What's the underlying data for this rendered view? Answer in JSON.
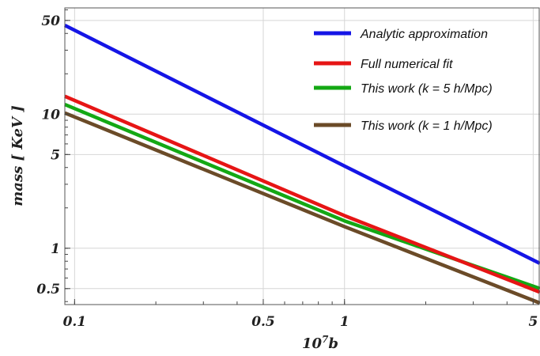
{
  "chart_data": {
    "type": "line",
    "xlabel": "10^7 b",
    "xlabel_base": "10",
    "xlabel_exponent": "7",
    "xlabel_variable": "b",
    "ylabel": "mass [ KeV ]",
    "xscale": "log",
    "yscale": "log",
    "xlim": [
      0.092,
      5.3
    ],
    "ylim": [
      0.38,
      62
    ],
    "xticks": [
      {
        "value": 0.1,
        "label": "0.1"
      },
      {
        "value": 0.5,
        "label": "0.5"
      },
      {
        "value": 1,
        "label": "1"
      },
      {
        "value": 5,
        "label": "5"
      }
    ],
    "yticks": [
      {
        "value": 0.5,
        "label": "0.5"
      },
      {
        "value": 1,
        "label": "1"
      },
      {
        "value": 5,
        "label": "5"
      },
      {
        "value": 10,
        "label": "10"
      },
      {
        "value": 50,
        "label": "50"
      }
    ],
    "grid": true,
    "legend_position": "top-right",
    "series": [
      {
        "name": "Analytic approximation",
        "color": "#1515e6",
        "x": [
          0.092,
          1,
          5.3
        ],
        "y": [
          46,
          4.1,
          0.77
        ]
      },
      {
        "name": "Full numerical fit",
        "color": "#e61515",
        "x": [
          0.092,
          1,
          5.3
        ],
        "y": [
          13.6,
          1.75,
          0.47
        ]
      },
      {
        "name": "This work (k = 5 h/Mpc)",
        "color": "#14a814",
        "x": [
          0.092,
          1,
          5.3
        ],
        "y": [
          11.8,
          1.6,
          0.5
        ]
      },
      {
        "name": "This work (k = 1 h/Mpc)",
        "color": "#6b4b28",
        "x": [
          0.092,
          1,
          5.3
        ],
        "y": [
          10.2,
          1.45,
          0.39
        ]
      }
    ]
  }
}
